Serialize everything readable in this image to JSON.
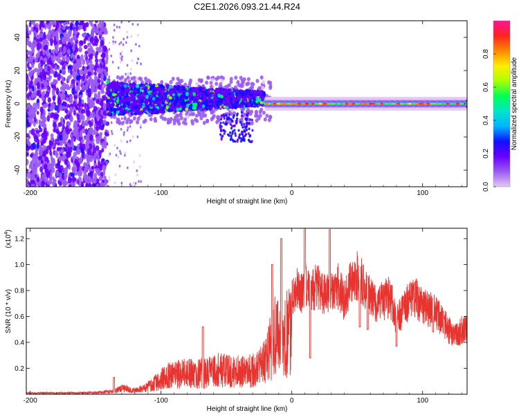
{
  "title": "C2E1.2026.093.21.44.R24",
  "colors": {
    "snr_line": "#e8332f",
    "colormap": [
      "#e3c8f5",
      "#9a5cf0",
      "#6a00ff",
      "#1010ff",
      "#00b4ff",
      "#00e6c8",
      "#00ff55",
      "#aaff00",
      "#ffee00",
      "#ff8800",
      "#ff2222",
      "#ff1493"
    ]
  },
  "chart_data": [
    {
      "type": "heatmap",
      "title": "C2E1.2026.093.21.44.R24",
      "xlabel": "Height of straight line (km)",
      "ylabel": "Frequency (Hz)",
      "xlim": [
        -203,
        134
      ],
      "ylim": [
        -50,
        50
      ],
      "x_ticks": [
        -200,
        -100,
        0,
        100
      ],
      "x_tick_labels": [
        "-200",
        "-100",
        "0",
        "100"
      ],
      "y_ticks": [
        40,
        20,
        0,
        -20,
        -40
      ],
      "y_tick_labels": [
        "40",
        "20",
        "0",
        "-20",
        "-40"
      ],
      "colorbar": {
        "label": "Normalized spectral amplitude",
        "range": [
          0,
          1
        ],
        "ticks": [
          0.0,
          0.2,
          0.4,
          0.6,
          0.8
        ],
        "tick_labels": [
          "0.0",
          "0.2",
          "0.4",
          "0.6",
          "0.8"
        ]
      },
      "description_regions": [
        {
          "x_range": [
            -203,
            -141
          ],
          "y_range": [
            -50,
            50
          ],
          "amplitude": 0.15
        },
        {
          "x_range": [
            -141,
            -20
          ],
          "y_range": [
            -8,
            14
          ],
          "amplitude": 0.35
        },
        {
          "x_range": [
            -20,
            134
          ],
          "y_range": [
            -3,
            3
          ],
          "amplitude": 0.6
        }
      ]
    },
    {
      "type": "line",
      "xlabel": "Height of straight line (km)",
      "ylabel": "SNR (10 * v/v)",
      "multiplier_label": "(x10",
      "multiplier_exp": "4",
      "multiplier_close": ")",
      "xlim": [
        -203,
        134
      ],
      "ylim": [
        0,
        1.28
      ],
      "x_ticks": [
        -200,
        -100,
        0,
        100
      ],
      "x_tick_labels": [
        "-200",
        "-100",
        "0",
        "100"
      ],
      "y_ticks": [
        0.2,
        0.4,
        0.6,
        0.8,
        1.0,
        1.2
      ],
      "y_tick_labels": [
        "0.2",
        "0.4",
        "0.6",
        "0.8",
        "1.0",
        "1.2"
      ],
      "series": [
        {
          "name": "SNR",
          "envelope_x": [
            -203,
            -150,
            -143,
            -136,
            -130,
            -120,
            -112,
            -105,
            -100,
            -95,
            -85,
            -75,
            -65,
            -55,
            -45,
            -38,
            -30,
            -25,
            -20,
            -15,
            -12,
            -8,
            -4,
            0,
            4,
            8,
            12,
            16,
            20,
            25,
            30,
            35,
            40,
            45,
            50,
            55,
            60,
            65,
            70,
            75,
            80,
            85,
            90,
            95,
            100,
            105,
            110,
            115,
            120,
            125,
            130,
            134
          ],
          "envelope_y": [
            0.015,
            0.02,
            0.03,
            0.04,
            0.08,
            0.05,
            0.08,
            0.15,
            0.2,
            0.25,
            0.27,
            0.28,
            0.28,
            0.33,
            0.3,
            0.3,
            0.32,
            0.35,
            0.45,
            0.7,
            0.85,
            0.55,
            0.8,
            0.9,
            1.0,
            0.95,
            1.1,
            1.0,
            1.05,
            0.95,
            1.0,
            1.05,
            0.9,
            1.1,
            1.15,
            1.05,
            0.95,
            0.85,
            0.9,
            0.95,
            0.72,
            0.8,
            0.9,
            0.92,
            0.85,
            0.82,
            0.78,
            0.72,
            0.62,
            0.56,
            0.62,
            0.62
          ],
          "spikes": [
            {
              "x": -136,
              "y": 0.13
            },
            {
              "x": -68,
              "y": 0.52
            },
            {
              "x": -15,
              "y": 1.0
            },
            {
              "x": -8,
              "y": 1.2
            },
            {
              "x": 10,
              "y": 1.28
            },
            {
              "x": 14,
              "y": 0.28
            },
            {
              "x": 29,
              "y": 1.27
            },
            {
              "x": 52,
              "y": 1.2
            },
            {
              "x": 52,
              "y": 0.52
            },
            {
              "x": 58,
              "y": 0.5
            },
            {
              "x": 80,
              "y": 0.37
            },
            {
              "x": 108,
              "y": 0.48
            }
          ]
        }
      ]
    }
  ]
}
